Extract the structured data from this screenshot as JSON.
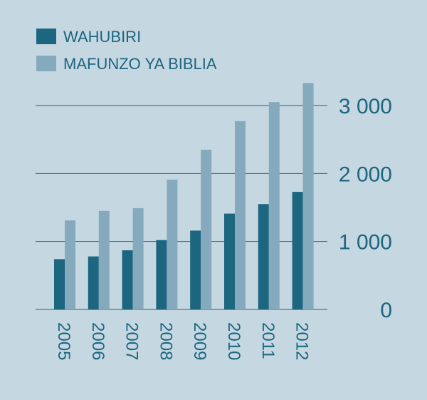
{
  "colors": {
    "background": "#c5d7e1",
    "wahubiri": "#1c6680",
    "mafunzo": "#86aabd",
    "gridline": "#1c6680",
    "text": "#1c6680"
  },
  "chart_data": {
    "type": "bar",
    "categories": [
      "2005",
      "2006",
      "2007",
      "2008",
      "2009",
      "2010",
      "2011",
      "2012"
    ],
    "series": [
      {
        "name": "WAHUBIRI",
        "values": [
          740,
          780,
          870,
          1020,
          1160,
          1410,
          1550,
          1730
        ]
      },
      {
        "name": "MAFUNZO YA BIBLIA",
        "values": [
          1310,
          1450,
          1490,
          1910,
          2350,
          2770,
          3050,
          3330
        ]
      }
    ],
    "ylim": [
      0,
      3000
    ],
    "yticks": [
      "0",
      "1 000",
      "2 000",
      "3 000"
    ],
    "grid": true,
    "legend": "top-left",
    "yaxis_position": "right"
  }
}
